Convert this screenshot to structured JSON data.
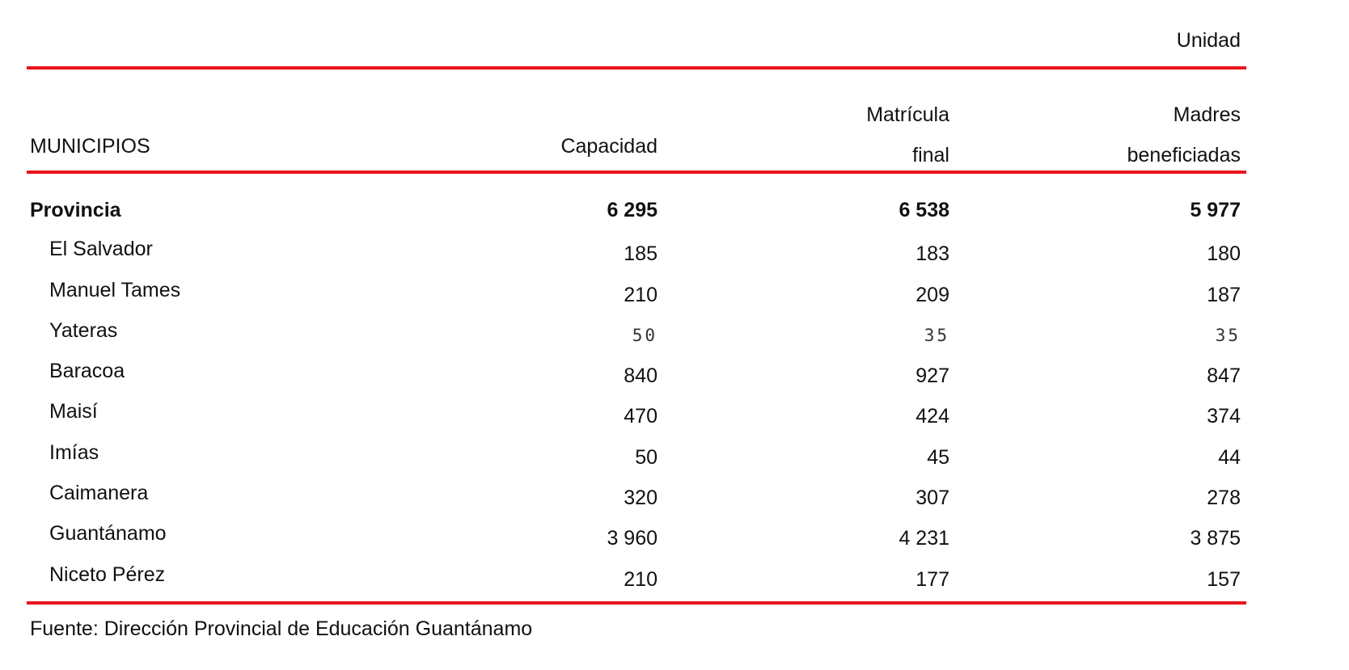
{
  "unit_label": "Unidad",
  "header": {
    "municipios": "MUNICIPIOS",
    "capacidad": "Capacidad",
    "matricula_line1": "Matrícula",
    "matricula_line2": "final",
    "madres_line1": "Madres",
    "madres_line2": "beneficiadas"
  },
  "rows": [
    {
      "name": "Provincia",
      "capacidad": "6 295",
      "matricula": "6 538",
      "madres": "5 977"
    },
    {
      "name": "El Salvador",
      "capacidad": "185",
      "matricula": "183",
      "madres": "180"
    },
    {
      "name": "Manuel Tames",
      "capacidad": "210",
      "matricula": "209",
      "madres": "187"
    },
    {
      "name": "Yateras",
      "capacidad": "50",
      "matricula": "35",
      "madres": "35"
    },
    {
      "name": "Baracoa",
      "capacidad": "840",
      "matricula": "927",
      "madres": "847"
    },
    {
      "name": "Maisí",
      "capacidad": "470",
      "matricula": "424",
      "madres": "374"
    },
    {
      "name": "Imías",
      "capacidad": "50",
      "matricula": "45",
      "madres": "44"
    },
    {
      "name": "Caimanera",
      "capacidad": "320",
      "matricula": "307",
      "madres": "278"
    },
    {
      "name": "Guantánamo",
      "capacidad": "3 960",
      "matricula": "4 231",
      "madres": "3 875"
    },
    {
      "name": "Niceto Pérez",
      "capacidad": "210",
      "matricula": "177",
      "madres": "157"
    }
  ],
  "source": "Fuente: Dirección Provincial de Educación Guantánamo",
  "colors": {
    "rule": "#e8141b",
    "text": "#111111"
  }
}
